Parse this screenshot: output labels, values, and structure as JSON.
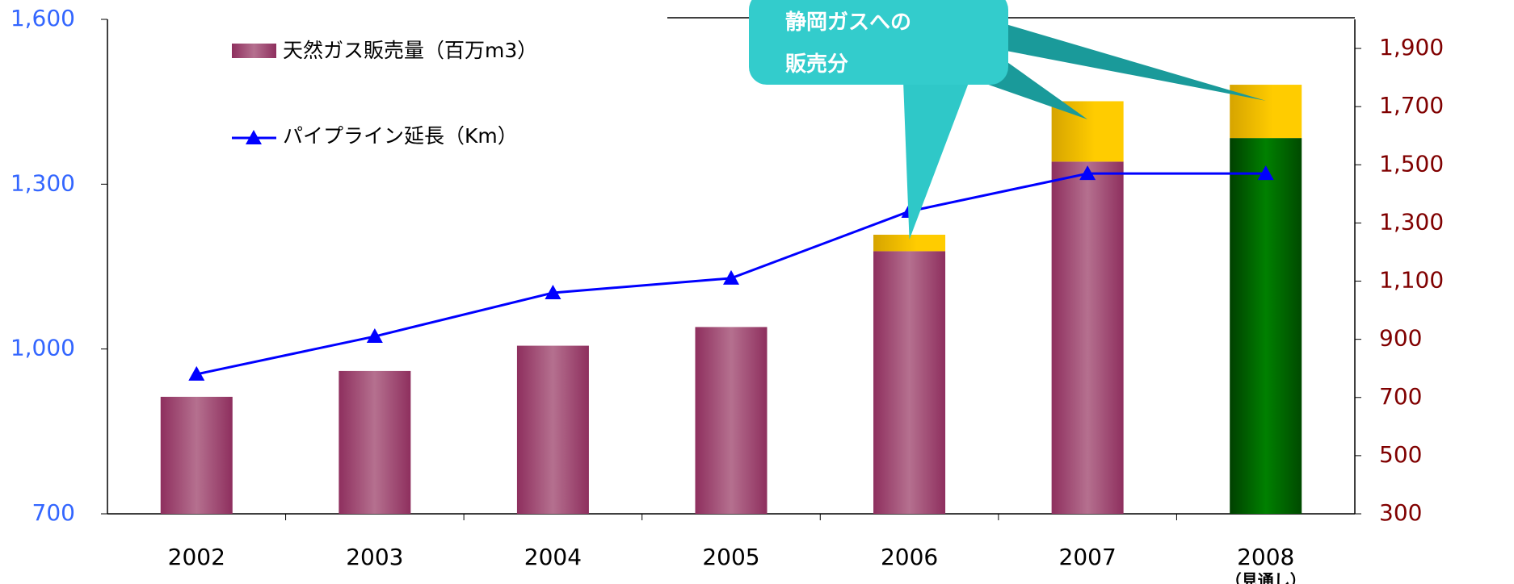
{
  "chart_data": {
    "type": "bar",
    "categories": [
      "2002",
      "2003",
      "2004",
      "2005",
      "2006",
      "2007",
      "2008"
    ],
    "annotations": [
      {
        "text": "（見通し）",
        "category": "2008"
      }
    ],
    "series": [
      {
        "name": "天然ガス販売量（百万m3）",
        "color": "#9b3b6b",
        "colors": [
          "#9b3b6b",
          "#9b3b6b",
          "#9b3b6b",
          "#9b3b6b",
          "#9b3b6b",
          "#9b3b6b",
          "#006400"
        ],
        "values": [
          913,
          960,
          1006,
          1040,
          1178,
          1341,
          1384
        ]
      },
      {
        "name": "静岡ガスへの販売分",
        "color": "#f0b800",
        "stacked": true,
        "values": [
          null,
          null,
          null,
          null,
          30,
          110,
          97
        ]
      },
      {
        "name": "パイプライン延長（Km）",
        "type": "line",
        "color": "#0000ff",
        "marker": "triangle",
        "axis": "y2",
        "values": [
          780,
          910,
          1060,
          1110,
          1340,
          1470,
          1470
        ]
      }
    ],
    "ylim": [
      700,
      1600
    ],
    "yticks": [
      700,
      {
        "value": 1000,
        "label": "1,000"
      },
      {
        "value": 1300,
        "label": "1,300"
      },
      {
        "value": 1600,
        "label": "1,600"
      }
    ],
    "y2lim": [
      300,
      2000
    ],
    "y2ticks": [
      300,
      500,
      700,
      900,
      {
        "value": 1100,
        "label": "1,100"
      },
      {
        "value": 1300,
        "label": "1,300"
      },
      {
        "value": 1500,
        "label": "1,500"
      },
      {
        "value": 1700,
        "label": "1,700"
      },
      {
        "value": 1900,
        "label": "1,900"
      }
    ],
    "grid": false,
    "legend": "upper left"
  }
}
